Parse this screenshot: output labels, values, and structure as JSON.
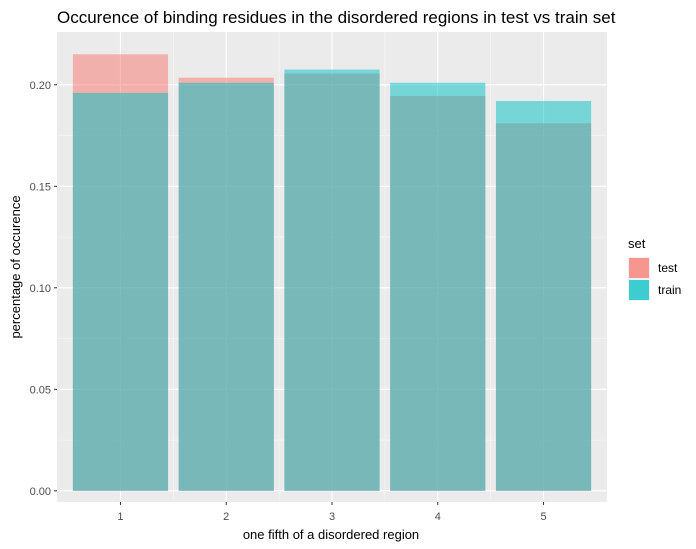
{
  "chart_data": {
    "type": "bar",
    "title": "Occurence of binding residues in the disordered regions in test vs train set",
    "xlabel": "one fifth of a disordered region",
    "ylabel": "percentage of occurence",
    "categories": [
      "1",
      "2",
      "3",
      "4",
      "5"
    ],
    "series": [
      {
        "name": "test",
        "values": [
          0.215,
          0.2035,
          0.2055,
          0.1945,
          0.181
        ],
        "color": "#F8766D"
      },
      {
        "name": "train",
        "values": [
          0.196,
          0.201,
          0.2075,
          0.201,
          0.192
        ],
        "color": "#00BFC4"
      }
    ],
    "ylim": [
      -0.0055,
      0.226
    ],
    "yticks": [
      0.0,
      0.05,
      0.1,
      0.15,
      0.2
    ],
    "ytick_labels": [
      "0.00",
      "0.05",
      "0.10",
      "0.15",
      "0.20"
    ],
    "bar_opacity": 0.5,
    "position": "identity",
    "grid": true,
    "panel_background": "#EBEBEB",
    "legend": {
      "title": "set",
      "placement": "right"
    }
  }
}
